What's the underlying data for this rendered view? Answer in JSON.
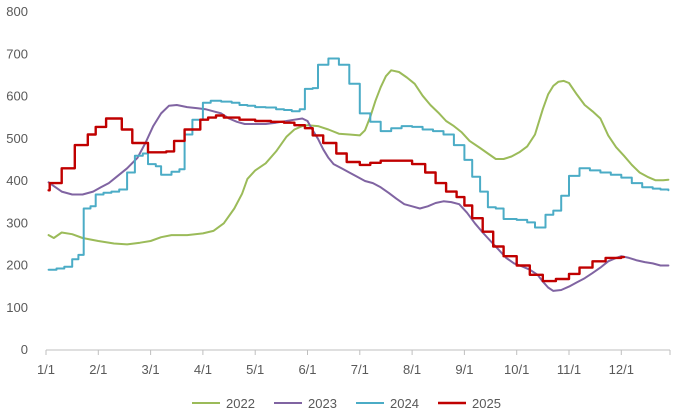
{
  "chart_data": {
    "type": "line",
    "title": "",
    "xlabel": "",
    "ylabel": "",
    "ylim": [
      0,
      800
    ],
    "yticks": [
      0,
      100,
      200,
      300,
      400,
      500,
      600,
      700,
      800
    ],
    "xlim": [
      0,
      12
    ],
    "xtick_labels": [
      "1/1",
      "2/1",
      "3/1",
      "4/1",
      "5/1",
      "6/1",
      "7/1",
      "8/1",
      "9/1",
      "10/1",
      "11/1",
      "12/1"
    ],
    "grid": false,
    "legend_position": "bottom",
    "series": [
      {
        "name": "2022",
        "color": "#9BBB59",
        "step": false,
        "points": [
          [
            0.05,
            272
          ],
          [
            0.15,
            265
          ],
          [
            0.3,
            278
          ],
          [
            0.5,
            274
          ],
          [
            0.7,
            265
          ],
          [
            1.0,
            258
          ],
          [
            1.3,
            252
          ],
          [
            1.55,
            250
          ],
          [
            1.8,
            254
          ],
          [
            2.0,
            258
          ],
          [
            2.2,
            267
          ],
          [
            2.4,
            272
          ],
          [
            2.7,
            272
          ],
          [
            3.0,
            276
          ],
          [
            3.2,
            282
          ],
          [
            3.4,
            300
          ],
          [
            3.6,
            335
          ],
          [
            3.75,
            370
          ],
          [
            3.85,
            405
          ],
          [
            4.0,
            425
          ],
          [
            4.2,
            442
          ],
          [
            4.4,
            470
          ],
          [
            4.6,
            505
          ],
          [
            4.75,
            522
          ],
          [
            4.9,
            530
          ],
          [
            5.0,
            532
          ],
          [
            5.2,
            530
          ],
          [
            5.4,
            522
          ],
          [
            5.6,
            512
          ],
          [
            5.8,
            510
          ],
          [
            6.0,
            508
          ],
          [
            6.1,
            520
          ],
          [
            6.2,
            552
          ],
          [
            6.3,
            590
          ],
          [
            6.4,
            622
          ],
          [
            6.5,
            648
          ],
          [
            6.6,
            662
          ],
          [
            6.75,
            658
          ],
          [
            6.9,
            645
          ],
          [
            7.05,
            630
          ],
          [
            7.2,
            602
          ],
          [
            7.35,
            580
          ],
          [
            7.5,
            562
          ],
          [
            7.65,
            542
          ],
          [
            7.8,
            530
          ],
          [
            7.95,
            515
          ],
          [
            8.1,
            495
          ],
          [
            8.3,
            478
          ],
          [
            8.45,
            465
          ],
          [
            8.6,
            452
          ],
          [
            8.75,
            452
          ],
          [
            8.9,
            458
          ],
          [
            9.05,
            468
          ],
          [
            9.2,
            482
          ],
          [
            9.35,
            510
          ],
          [
            9.5,
            570
          ],
          [
            9.6,
            605
          ],
          [
            9.7,
            625
          ],
          [
            9.8,
            635
          ],
          [
            9.9,
            637
          ],
          [
            10.0,
            632
          ],
          [
            10.15,
            605
          ],
          [
            10.3,
            580
          ],
          [
            10.45,
            565
          ],
          [
            10.6,
            548
          ],
          [
            10.75,
            508
          ],
          [
            10.9,
            480
          ],
          [
            11.05,
            460
          ],
          [
            11.2,
            438
          ],
          [
            11.35,
            420
          ],
          [
            11.5,
            410
          ],
          [
            11.65,
            402
          ],
          [
            11.8,
            402
          ],
          [
            11.9,
            403
          ]
        ]
      },
      {
        "name": "2023",
        "color": "#8064A2",
        "step": false,
        "points": [
          [
            0.05,
            397
          ],
          [
            0.15,
            388
          ],
          [
            0.3,
            375
          ],
          [
            0.5,
            368
          ],
          [
            0.7,
            368
          ],
          [
            0.9,
            375
          ],
          [
            1.05,
            385
          ],
          [
            1.2,
            395
          ],
          [
            1.35,
            410
          ],
          [
            1.55,
            430
          ],
          [
            1.75,
            455
          ],
          [
            1.9,
            490
          ],
          [
            2.05,
            530
          ],
          [
            2.2,
            560
          ],
          [
            2.35,
            578
          ],
          [
            2.5,
            580
          ],
          [
            2.7,
            575
          ],
          [
            2.9,
            572
          ],
          [
            3.05,
            570
          ],
          [
            3.2,
            565
          ],
          [
            3.35,
            560
          ],
          [
            3.5,
            548
          ],
          [
            3.65,
            540
          ],
          [
            3.8,
            535
          ],
          [
            4.0,
            535
          ],
          [
            4.2,
            535
          ],
          [
            4.4,
            538
          ],
          [
            4.6,
            542
          ],
          [
            4.75,
            545
          ],
          [
            4.9,
            548
          ],
          [
            5.0,
            542
          ],
          [
            5.1,
            520
          ],
          [
            5.2,
            500
          ],
          [
            5.3,
            475
          ],
          [
            5.4,
            455
          ],
          [
            5.5,
            440
          ],
          [
            5.65,
            430
          ],
          [
            5.8,
            420
          ],
          [
            5.95,
            410
          ],
          [
            6.1,
            400
          ],
          [
            6.25,
            395
          ],
          [
            6.4,
            385
          ],
          [
            6.55,
            372
          ],
          [
            6.7,
            358
          ],
          [
            6.85,
            345
          ],
          [
            7.0,
            340
          ],
          [
            7.15,
            335
          ],
          [
            7.3,
            340
          ],
          [
            7.45,
            348
          ],
          [
            7.6,
            352
          ],
          [
            7.75,
            350
          ],
          [
            7.9,
            345
          ],
          [
            8.05,
            325
          ],
          [
            8.2,
            300
          ],
          [
            8.35,
            278
          ],
          [
            8.5,
            258
          ],
          [
            8.65,
            238
          ],
          [
            8.8,
            218
          ],
          [
            8.95,
            205
          ],
          [
            9.1,
            198
          ],
          [
            9.25,
            190
          ],
          [
            9.4,
            178
          ],
          [
            9.5,
            162
          ],
          [
            9.6,
            148
          ],
          [
            9.7,
            140
          ],
          [
            9.85,
            142
          ],
          [
            10.0,
            150
          ],
          [
            10.15,
            160
          ],
          [
            10.3,
            170
          ],
          [
            10.45,
            182
          ],
          [
            10.6,
            195
          ],
          [
            10.75,
            210
          ],
          [
            10.9,
            218
          ],
          [
            11.0,
            222
          ],
          [
            11.15,
            218
          ],
          [
            11.3,
            212
          ],
          [
            11.45,
            208
          ],
          [
            11.6,
            205
          ],
          [
            11.75,
            200
          ],
          [
            11.9,
            200
          ]
        ]
      },
      {
        "name": "2024",
        "color": "#4BACC6",
        "step": true,
        "points": [
          [
            0.05,
            190
          ],
          [
            0.2,
            193
          ],
          [
            0.35,
            197
          ],
          [
            0.5,
            215
          ],
          [
            0.62,
            225
          ],
          [
            0.72,
            335
          ],
          [
            0.85,
            340
          ],
          [
            0.95,
            368
          ],
          [
            1.1,
            372
          ],
          [
            1.25,
            375
          ],
          [
            1.4,
            380
          ],
          [
            1.55,
            420
          ],
          [
            1.7,
            460
          ],
          [
            1.85,
            465
          ],
          [
            1.95,
            440
          ],
          [
            2.1,
            435
          ],
          [
            2.2,
            415
          ],
          [
            2.4,
            422
          ],
          [
            2.55,
            428
          ],
          [
            2.65,
            510
          ],
          [
            2.8,
            545
          ],
          [
            3.0,
            585
          ],
          [
            3.15,
            590
          ],
          [
            3.35,
            588
          ],
          [
            3.55,
            585
          ],
          [
            3.7,
            580
          ],
          [
            3.85,
            578
          ],
          [
            4.0,
            575
          ],
          [
            4.2,
            574
          ],
          [
            4.4,
            570
          ],
          [
            4.55,
            568
          ],
          [
            4.7,
            565
          ],
          [
            4.85,
            570
          ],
          [
            4.95,
            618
          ],
          [
            5.1,
            620
          ],
          [
            5.2,
            675
          ],
          [
            5.4,
            690
          ],
          [
            5.6,
            675
          ],
          [
            5.8,
            630
          ],
          [
            6.0,
            560
          ],
          [
            6.2,
            540
          ],
          [
            6.4,
            518
          ],
          [
            6.6,
            525
          ],
          [
            6.8,
            530
          ],
          [
            7.0,
            528
          ],
          [
            7.2,
            522
          ],
          [
            7.4,
            518
          ],
          [
            7.6,
            510
          ],
          [
            7.8,
            485
          ],
          [
            8.0,
            450
          ],
          [
            8.15,
            410
          ],
          [
            8.3,
            375
          ],
          [
            8.45,
            338
          ],
          [
            8.6,
            335
          ],
          [
            8.75,
            310
          ],
          [
            9.0,
            308
          ],
          [
            9.2,
            302
          ],
          [
            9.35,
            290
          ],
          [
            9.55,
            320
          ],
          [
            9.7,
            330
          ],
          [
            9.85,
            365
          ],
          [
            10.0,
            412
          ],
          [
            10.2,
            430
          ],
          [
            10.4,
            425
          ],
          [
            10.6,
            420
          ],
          [
            10.8,
            415
          ],
          [
            11.0,
            408
          ],
          [
            11.2,
            395
          ],
          [
            11.4,
            385
          ],
          [
            11.6,
            382
          ],
          [
            11.75,
            380
          ],
          [
            11.9,
            378
          ]
        ]
      },
      {
        "name": "2025",
        "color": "#C00000",
        "step": true,
        "points": [
          [
            0.05,
            378
          ],
          [
            0.07,
            395
          ],
          [
            0.3,
            430
          ],
          [
            0.55,
            485
          ],
          [
            0.8,
            510
          ],
          [
            0.95,
            528
          ],
          [
            1.15,
            548
          ],
          [
            1.45,
            522
          ],
          [
            1.65,
            490
          ],
          [
            1.95,
            468
          ],
          [
            2.3,
            470
          ],
          [
            2.45,
            495
          ],
          [
            2.65,
            522
          ],
          [
            2.95,
            545
          ],
          [
            3.1,
            550
          ],
          [
            3.25,
            555
          ],
          [
            3.4,
            550
          ],
          [
            3.7,
            545
          ],
          [
            4.0,
            542
          ],
          [
            4.3,
            540
          ],
          [
            4.55,
            538
          ],
          [
            4.75,
            532
          ],
          [
            4.95,
            525
          ],
          [
            5.1,
            508
          ],
          [
            5.3,
            490
          ],
          [
            5.55,
            465
          ],
          [
            5.75,
            445
          ],
          [
            6.0,
            438
          ],
          [
            6.2,
            443
          ],
          [
            6.4,
            448
          ],
          [
            6.75,
            448
          ],
          [
            7.0,
            440
          ],
          [
            7.25,
            420
          ],
          [
            7.45,
            395
          ],
          [
            7.65,
            375
          ],
          [
            7.85,
            362
          ],
          [
            8.0,
            342
          ],
          [
            8.15,
            312
          ],
          [
            8.35,
            280
          ],
          [
            8.55,
            245
          ],
          [
            8.75,
            222
          ],
          [
            9.0,
            200
          ],
          [
            9.25,
            178
          ],
          [
            9.5,
            163
          ],
          [
            9.75,
            168
          ],
          [
            10.0,
            180
          ],
          [
            10.2,
            195
          ],
          [
            10.45,
            210
          ],
          [
            10.7,
            218
          ],
          [
            11.0,
            220
          ],
          [
            11.05,
            220
          ]
        ]
      }
    ]
  }
}
